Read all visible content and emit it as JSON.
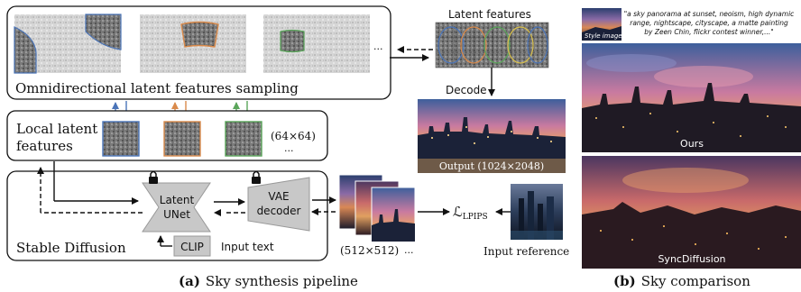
{
  "sampling": {
    "label": "Omnidirectional latent features sampling",
    "ellipsis": "..."
  },
  "latent_features": {
    "title": "Latent features"
  },
  "decode_label": "Decode",
  "output_label": "Output (1024×2048)",
  "local": {
    "line1": "Local latent",
    "line2": "features",
    "size": "(64×64)",
    "ellipsis": "..."
  },
  "stable_diffusion": {
    "label": "Stable Diffusion",
    "unet_line1": "Latent",
    "unet_line2": "UNet",
    "vae_line1": "VAE",
    "vae_line2": "decoder",
    "clip": "CLIP",
    "input_text": "Input text"
  },
  "stack_size": "(512×512)",
  "stack_ellipsis": "...",
  "loss": {
    "symbol": "ℒ",
    "subscript": "LPIPS"
  },
  "input_reference": "Input reference",
  "caption_a": {
    "letter": "(a)",
    "text": "Sky synthesis pipeline"
  },
  "caption_b": {
    "letter": "(b)",
    "text": "Sky comparison"
  },
  "style_image_label": "Style image",
  "prompt_lines": [
    "\"a sky panorama at sunset, neoism, high dynamic",
    "range,  nightscape, cityscape, a matte painting",
    "by Zeen Chin, flickr contest winner,...\""
  ],
  "ours_label": "Ours",
  "sync_label": "SyncDiffusion",
  "colors": {
    "blue": "#4a74b8",
    "orange": "#d98a4b",
    "green": "#5aa55a",
    "gray_box": "#c8c8c8"
  }
}
